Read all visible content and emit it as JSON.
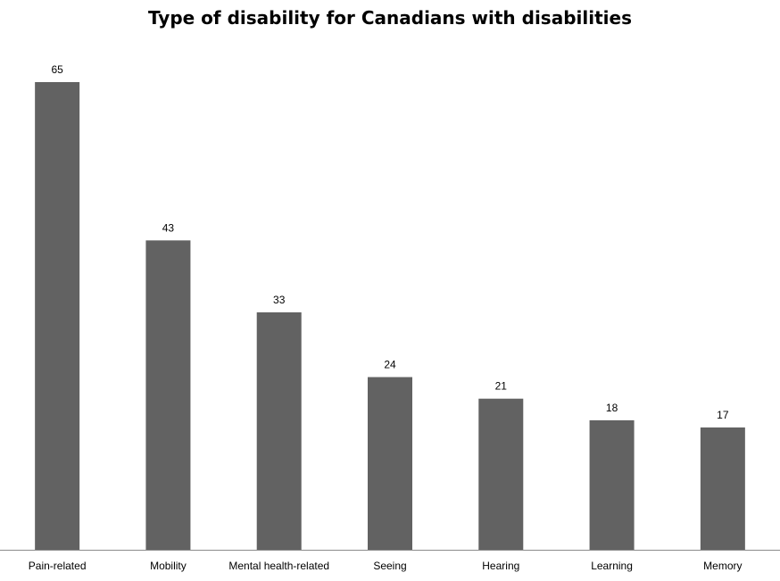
{
  "chart_data": {
    "type": "bar",
    "title": "Type of disability for Canadians with disabilities",
    "xlabel": "",
    "ylabel": "",
    "categories": [
      "Pain-related",
      "Mobility",
      "Mental health-related",
      "Seeing",
      "Hearing",
      "Learning",
      "Memory"
    ],
    "values": [
      65,
      43,
      33,
      24,
      21,
      18,
      17
    ],
    "ylim": [
      0,
      70
    ],
    "grid": false,
    "legend": "none",
    "bar_color": "#626262"
  }
}
